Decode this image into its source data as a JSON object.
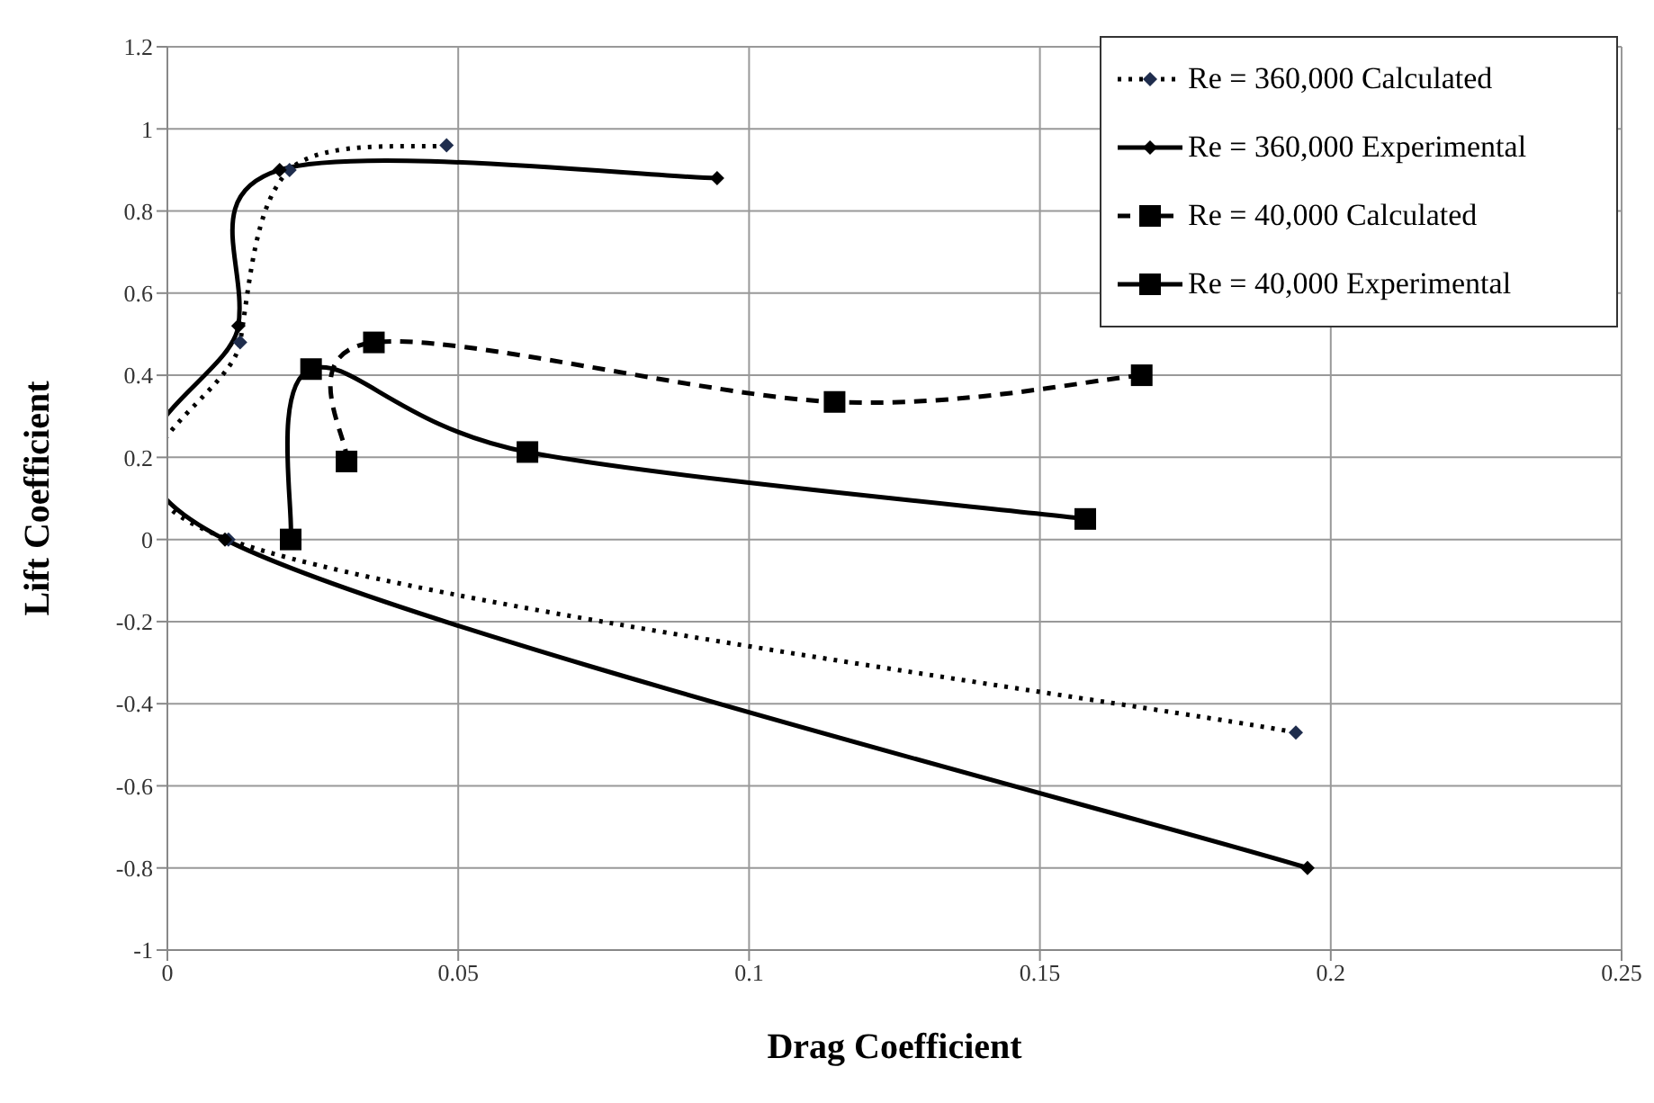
{
  "chart_data": {
    "type": "line",
    "xlabel": "Drag Coefficient",
    "ylabel": "Lift Coefficient",
    "xlim": [
      0,
      0.25
    ],
    "xticks": [
      0,
      0.05,
      0.1,
      0.15,
      0.2,
      0.25
    ],
    "ylim": [
      -1,
      1.2
    ],
    "yticks": [
      -1,
      -0.8,
      -0.6,
      -0.4,
      -0.2,
      0,
      0.2,
      0.4,
      0.6,
      0.8,
      1,
      1.2
    ],
    "grid": true,
    "legend": "top right",
    "series": [
      {
        "name": "Re = 360,000 Calculated",
        "color": "#1f2d4d",
        "line_style": "dotted",
        "marker": "diamond",
        "x": [
          0.194,
          0.0105,
          0.0125,
          0.021,
          0.048
        ],
        "values": [
          -0.47,
          0,
          0.48,
          0.9,
          0.96
        ]
      },
      {
        "name": "Re = 360,000 Experimental",
        "color": "#000000",
        "line_style": "solid",
        "marker": "diamond",
        "x": [
          0.196,
          0.0099,
          0.0122,
          0.0193,
          0.0945
        ],
        "values": [
          -0.8,
          0,
          0.52,
          0.9,
          0.88
        ]
      },
      {
        "name": "Re = 40,000 Calculated",
        "color": "#000000",
        "line_style": "dashed",
        "marker": "square",
        "x": [
          0.0308,
          0.0355,
          0.1147,
          0.1675
        ],
        "values": [
          0.19,
          0.48,
          0.335,
          0.4
        ]
      },
      {
        "name": "Re = 40,000 Experimental",
        "color": "#000000",
        "line_style": "solid",
        "marker": "square",
        "x": [
          0.0212,
          0.0247,
          0.0619,
          0.1578
        ],
        "values": [
          0,
          0.415,
          0.213,
          0.05
        ]
      }
    ]
  }
}
